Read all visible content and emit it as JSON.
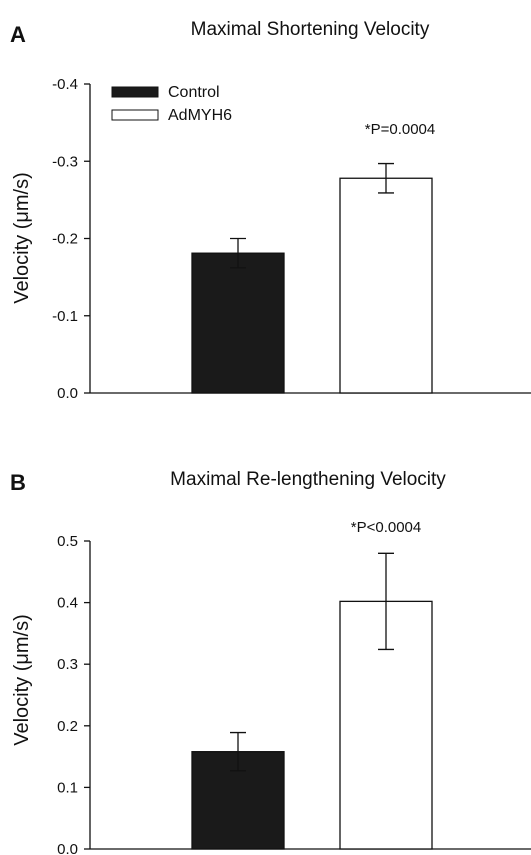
{
  "chart_data": [
    {
      "type": "bar",
      "panel": "A",
      "title": "Maximal Shortening Velocity",
      "ylabel": "Velocity (μm/s)",
      "xlabel": "",
      "ylim": [
        0,
        -0.4
      ],
      "y_inverted": true,
      "yticks": [
        0.0,
        -0.1,
        -0.2,
        -0.3,
        -0.4
      ],
      "ytick_labels": [
        "0.0",
        "-0.1",
        "-0.2",
        "-0.3",
        "-0.4"
      ],
      "categories": [
        "Control",
        "AdMYH6"
      ],
      "values": [
        -0.181,
        -0.278
      ],
      "errors": [
        0.019,
        0.019
      ],
      "bar_colors": [
        "#1a1a1a",
        "#ffffff"
      ],
      "annotation": "*P=0.0004",
      "legend": {
        "placement": "top-left",
        "entries": [
          {
            "label": "Control",
            "color": "#1a1a1a"
          },
          {
            "label": "AdMYH6",
            "color": "#ffffff"
          }
        ]
      },
      "grid": false
    },
    {
      "type": "bar",
      "panel": "B",
      "title": "Maximal Re-lengthening Velocity",
      "ylabel": "Velocity (μm/s)",
      "xlabel": "",
      "ylim": [
        0,
        0.5
      ],
      "yticks": [
        0.0,
        0.1,
        0.2,
        0.3,
        0.4,
        0.5
      ],
      "ytick_labels": [
        "0.0",
        "0.1",
        "0.2",
        "0.3",
        "0.4",
        "0.5"
      ],
      "categories": [
        "Control",
        "AdMYH6"
      ],
      "values": [
        0.158,
        0.402
      ],
      "errors": [
        0.031,
        0.078
      ],
      "bar_colors": [
        "#1a1a1a",
        "#ffffff"
      ],
      "annotation": "*P<0.0004",
      "grid": false
    }
  ]
}
